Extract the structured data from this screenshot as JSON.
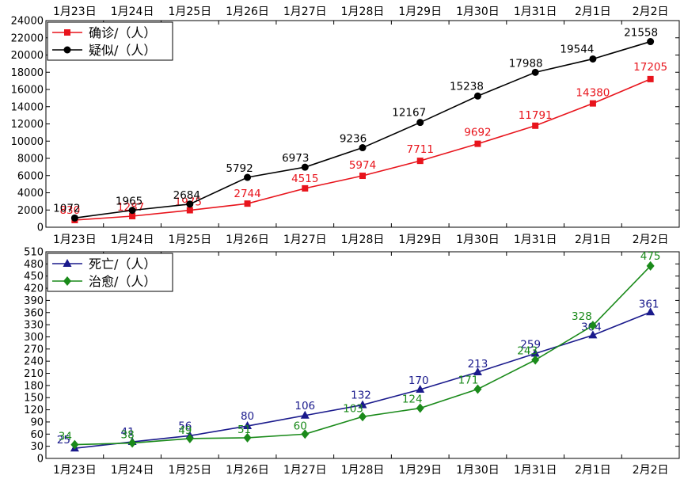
{
  "chart_data": [
    {
      "type": "line",
      "x": [
        "1月23日",
        "1月24日",
        "1月25日",
        "1月26日",
        "1月27日",
        "1月28日",
        "1月29日",
        "1月30日",
        "1月31日",
        "2月1日",
        "2月2日"
      ],
      "ylim": [
        0,
        24000
      ],
      "yticks": [
        0,
        2000,
        4000,
        6000,
        8000,
        10000,
        12000,
        14000,
        16000,
        18000,
        20000,
        22000,
        24000
      ],
      "legend_position": "top-left",
      "grid": false,
      "series": [
        {
          "name": "确诊/（人）",
          "color": "#e8141c",
          "marker": "square",
          "values": [
            830,
            1287,
            1975,
            2744,
            4515,
            5974,
            7711,
            9692,
            11791,
            14380,
            17205
          ]
        },
        {
          "name": "疑似/（人）",
          "color": "#000000",
          "marker": "circle",
          "values": [
            1072,
            1965,
            2684,
            5792,
            6973,
            9236,
            12167,
            15238,
            17988,
            19544,
            21558
          ]
        }
      ]
    },
    {
      "type": "line",
      "x": [
        "1月23日",
        "1月24日",
        "1月25日",
        "1月26日",
        "1月27日",
        "1月28日",
        "1月29日",
        "1月30日",
        "1月31日",
        "2月1日",
        "2月2日"
      ],
      "ylim": [
        0,
        510
      ],
      "yticks": [
        0,
        30,
        60,
        90,
        120,
        150,
        180,
        210,
        240,
        270,
        300,
        330,
        360,
        390,
        420,
        450,
        480,
        510
      ],
      "legend_position": "top-left",
      "grid": false,
      "series": [
        {
          "name": "死亡/（人）",
          "color": "#1a1a8c",
          "marker": "triangle",
          "values": [
            25,
            41,
            56,
            80,
            106,
            132,
            170,
            213,
            259,
            304,
            361
          ]
        },
        {
          "name": "治愈/（人）",
          "color": "#1a8a1a",
          "marker": "diamond",
          "values": [
            34,
            38,
            49,
            51,
            60,
            103,
            124,
            171,
            243,
            328,
            475
          ]
        }
      ]
    }
  ]
}
